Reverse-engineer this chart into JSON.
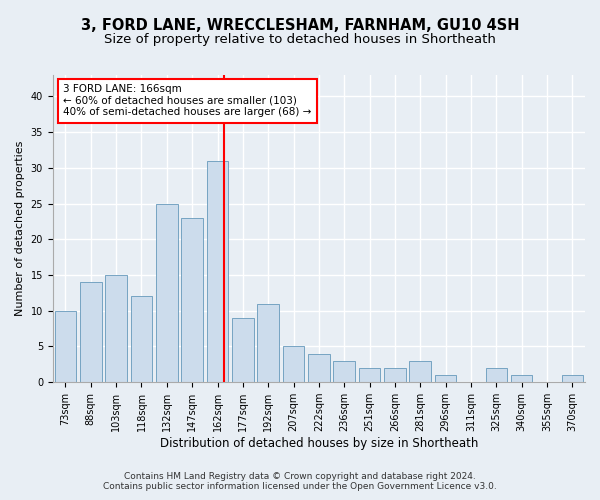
{
  "title1": "3, FORD LANE, WRECCLESHAM, FARNHAM, GU10 4SH",
  "title2": "Size of property relative to detached houses in Shortheath",
  "xlabel": "Distribution of detached houses by size in Shortheath",
  "ylabel": "Number of detached properties",
  "categories": [
    "73sqm",
    "88sqm",
    "103sqm",
    "118sqm",
    "132sqm",
    "147sqm",
    "162sqm",
    "177sqm",
    "192sqm",
    "207sqm",
    "222sqm",
    "236sqm",
    "251sqm",
    "266sqm",
    "281sqm",
    "296sqm",
    "311sqm",
    "325sqm",
    "340sqm",
    "355sqm",
    "370sqm"
  ],
  "values": [
    10,
    14,
    15,
    12,
    25,
    23,
    31,
    9,
    11,
    5,
    4,
    3,
    2,
    2,
    3,
    1,
    0,
    2,
    1,
    0,
    1
  ],
  "bar_color": "#ccdcec",
  "bar_edge_color": "#6699bb",
  "annotation_line1": "3 FORD LANE: 166sqm",
  "annotation_line2": "← 60% of detached houses are smaller (103)",
  "annotation_line3": "40% of semi-detached houses are larger (68) →",
  "annotation_box_color": "white",
  "annotation_box_edge": "red",
  "vline_color": "red",
  "ylim": [
    0,
    43
  ],
  "yticks": [
    0,
    5,
    10,
    15,
    20,
    25,
    30,
    35,
    40
  ],
  "footnote1": "Contains HM Land Registry data © Crown copyright and database right 2024.",
  "footnote2": "Contains public sector information licensed under the Open Government Licence v3.0.",
  "background_color": "#e8eef4",
  "grid_color": "#ffffff",
  "title1_fontsize": 10.5,
  "title2_fontsize": 9.5,
  "xlabel_fontsize": 8.5,
  "ylabel_fontsize": 8,
  "tick_fontsize": 7,
  "footnote_fontsize": 6.5,
  "annotation_fontsize": 7.5
}
